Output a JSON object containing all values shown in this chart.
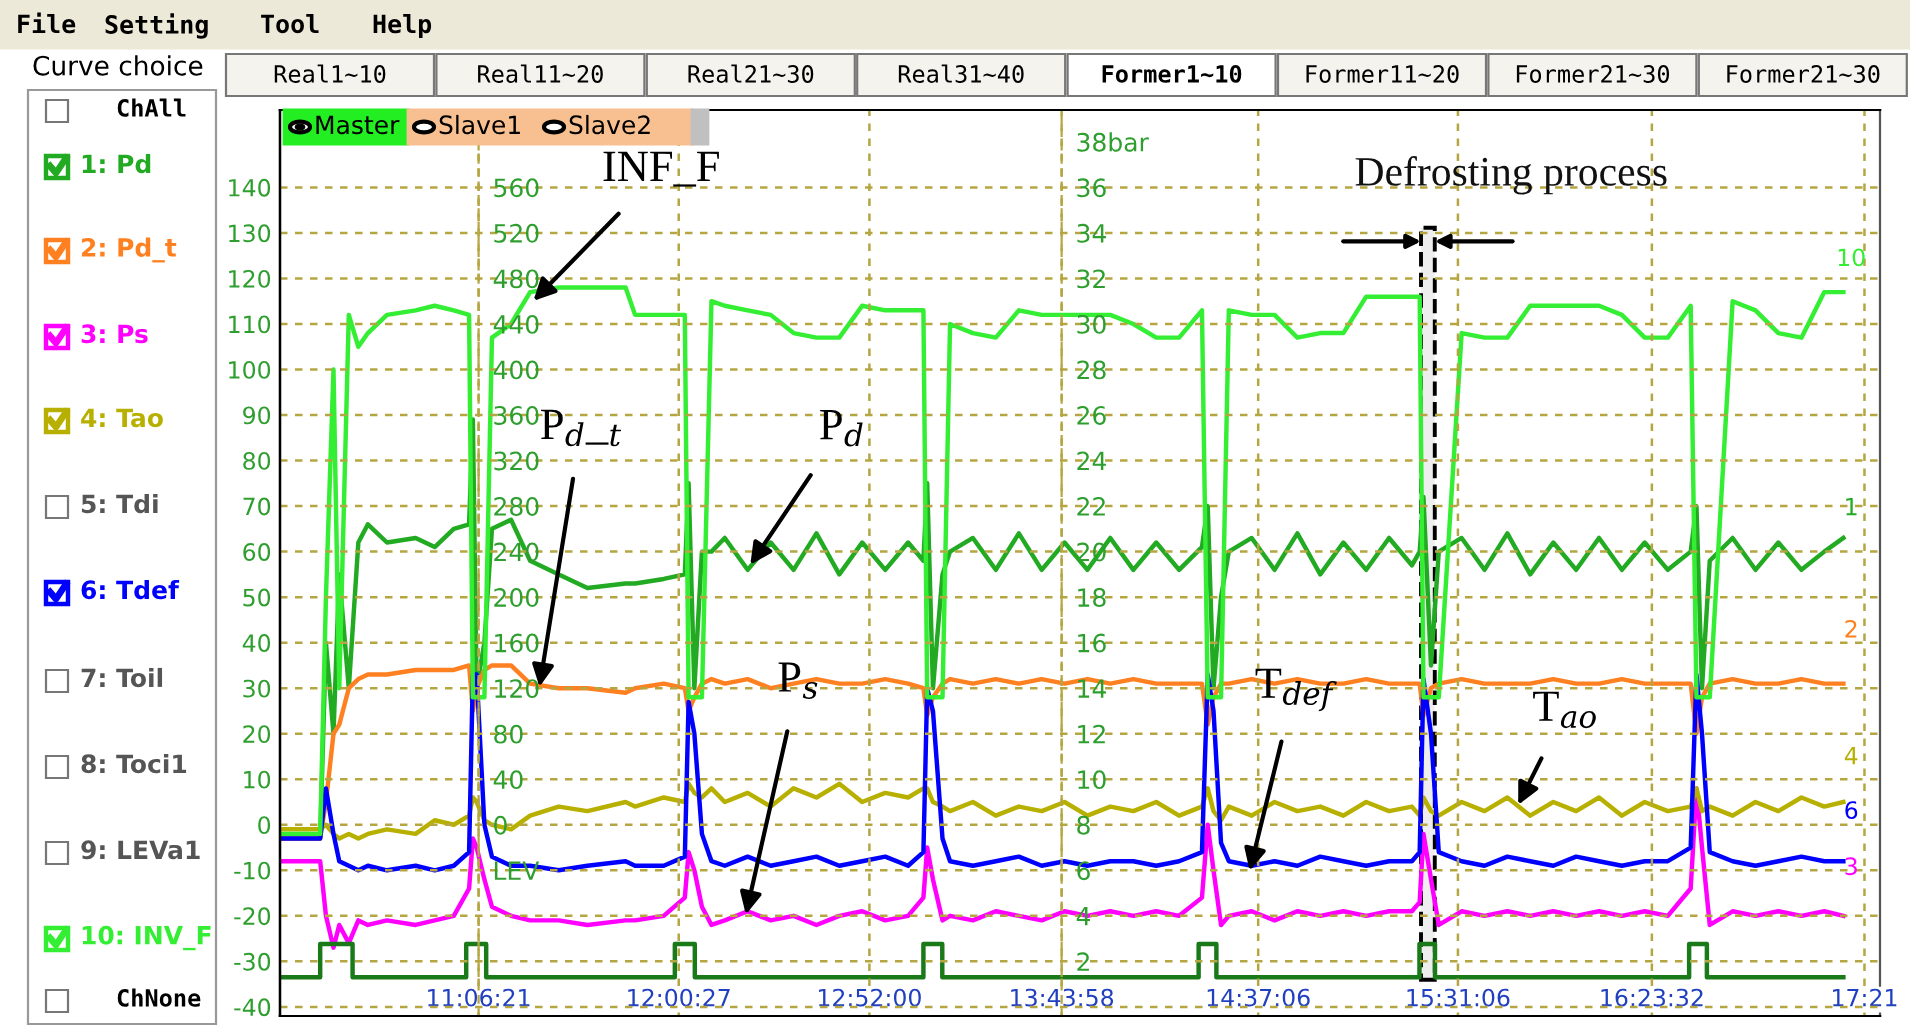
{
  "chart_data": {
    "type": "line",
    "x": [
      10.211,
      10.392,
      10.418,
      10.452,
      10.478,
      10.521,
      10.564,
      10.607,
      10.693,
      10.822,
      10.908,
      10.994,
      11.063,
      11.08,
      11.097,
      11.132,
      11.166,
      11.252,
      11.338,
      11.467,
      11.596,
      11.768,
      11.811,
      11.94,
      12.035,
      12.052,
      12.078,
      12.112,
      12.155,
      12.215,
      12.318,
      12.422,
      12.525,
      12.628,
      12.731,
      12.834,
      12.938,
      13.041,
      13.11,
      13.127,
      13.153,
      13.196,
      13.23,
      13.333,
      13.436,
      13.54,
      13.643,
      13.746,
      13.849,
      13.952,
      14.056,
      14.159,
      14.262,
      14.365,
      14.391,
      14.417,
      14.451,
      14.486,
      14.589,
      14.692,
      14.795,
      14.898,
      15.002,
      15.105,
      15.208,
      15.311,
      15.346,
      15.363,
      15.397,
      15.432,
      15.535,
      15.638,
      15.741,
      15.844,
      15.948,
      16.051,
      16.154,
      16.257,
      16.36,
      16.464,
      16.567,
      16.593,
      16.618,
      16.653,
      16.756,
      16.859,
      16.962,
      17.066,
      17.169,
      17.255
    ],
    "series": [
      {
        "name": "1: Pd",
        "color": "#22aa22",
        "values": [
          -3,
          -3,
          40,
          20,
          55,
          30,
          62,
          66,
          62,
          63,
          61,
          65,
          66,
          89,
          30,
          40,
          65,
          67,
          58,
          55,
          52,
          53,
          53,
          54,
          55,
          75,
          30,
          60,
          60,
          63,
          56,
          62,
          56,
          64,
          55,
          62,
          56,
          62,
          58,
          75,
          30,
          55,
          60,
          63,
          56,
          64,
          56,
          62,
          56,
          63,
          56,
          62,
          56,
          61,
          70,
          30,
          50,
          60,
          63,
          56,
          64,
          55,
          62,
          56,
          63,
          57,
          60,
          72,
          35,
          60,
          63,
          56,
          64,
          55,
          62,
          56,
          63,
          56,
          62,
          56,
          60,
          70,
          30,
          58,
          63,
          56,
          62,
          56,
          60,
          63
        ]
      },
      {
        "name": "2: Pd_t",
        "color": "#ff8020",
        "values": [
          -3,
          -3,
          5,
          20,
          22,
          30,
          32,
          33,
          33,
          34,
          34,
          34,
          35,
          25,
          30,
          34,
          35,
          35,
          31,
          30,
          30,
          29,
          30,
          31,
          30,
          25,
          28,
          31,
          32,
          31,
          32,
          30,
          31,
          32,
          31,
          31,
          32,
          31,
          30,
          24,
          28,
          31,
          32,
          31,
          32,
          31,
          32,
          31,
          32,
          31,
          32,
          31,
          31,
          31,
          22,
          28,
          31,
          31,
          32,
          31,
          32,
          31,
          31,
          32,
          31,
          31,
          31,
          24,
          30,
          31,
          32,
          31,
          31,
          31,
          32,
          31,
          31,
          32,
          31,
          31,
          31,
          20,
          28,
          31,
          32,
          31,
          31,
          32,
          31,
          31
        ]
      },
      {
        "name": "3: Ps",
        "color": "#ff00ff",
        "values": [
          -8,
          -8,
          -20,
          -27,
          -22,
          -26,
          -21,
          -22,
          -21,
          -22,
          -21,
          -20,
          -14,
          -3,
          -5,
          -12,
          -18,
          -20,
          -21,
          -21,
          -22,
          -21,
          -21,
          -20,
          -16,
          -6,
          -10,
          -18,
          -22,
          -21,
          -19,
          -21,
          -20,
          -22,
          -20,
          -19,
          -21,
          -20,
          -16,
          -5,
          -12,
          -21,
          -20,
          -21,
          -19,
          -20,
          -21,
          -19,
          -20,
          -19,
          -20,
          -19,
          -20,
          -16,
          0,
          -10,
          -22,
          -20,
          -19,
          -21,
          -19,
          -20,
          -19,
          -20,
          -19,
          -19,
          -17,
          -2,
          -12,
          -22,
          -19,
          -20,
          -19,
          -20,
          -19,
          -20,
          -19,
          -20,
          -19,
          -20,
          -14,
          8,
          -5,
          -22,
          -19,
          -20,
          -19,
          -20,
          -19,
          -20
        ]
      },
      {
        "name": "4: Tao",
        "color": "#b8b000",
        "values": [
          -1,
          -1,
          0,
          -2,
          -3,
          -2,
          -3,
          -2,
          -1,
          -2,
          1,
          0,
          2,
          6,
          5,
          1,
          0,
          -1,
          2,
          4,
          3,
          5,
          4,
          6,
          5,
          9,
          7,
          6,
          8,
          5,
          7,
          4,
          8,
          6,
          9,
          5,
          7,
          6,
          8,
          8,
          5,
          4,
          3,
          5,
          2,
          4,
          3,
          5,
          2,
          4,
          3,
          5,
          2,
          4,
          8,
          3,
          1,
          4,
          2,
          5,
          3,
          4,
          2,
          5,
          3,
          4,
          2,
          6,
          3,
          2,
          5,
          3,
          6,
          2,
          5,
          3,
          6,
          2,
          5,
          3,
          4,
          8,
          3,
          4,
          2,
          5,
          3,
          6,
          4,
          5
        ]
      },
      {
        "name": "6: Tdef",
        "color": "#0000ff",
        "values": [
          -3,
          -3,
          8,
          -2,
          -8,
          -9,
          -10,
          -9,
          -10,
          -9,
          -10,
          -9,
          -6,
          33,
          33,
          0,
          -7,
          -9,
          -9,
          -10,
          -9,
          -8,
          -9,
          -9,
          -7,
          27,
          20,
          -2,
          -8,
          -9,
          -7,
          -9,
          -8,
          -7,
          -9,
          -8,
          -7,
          -9,
          -6,
          30,
          25,
          -3,
          -8,
          -9,
          -8,
          -7,
          -9,
          -8,
          -9,
          -8,
          -8,
          -9,
          -8,
          -6,
          33,
          25,
          -4,
          -8,
          -9,
          -8,
          -9,
          -7,
          -8,
          -9,
          -8,
          -8,
          -6,
          32,
          20,
          -6,
          -8,
          -9,
          -7,
          -8,
          -9,
          -7,
          -8,
          -9,
          -8,
          -8,
          -5,
          33,
          20,
          -6,
          -8,
          -9,
          -8,
          -7,
          -8,
          -8
        ]
      },
      {
        "name": "10: INV_F",
        "color": "#33ee33",
        "values": [
          -2,
          -2,
          50,
          100,
          30,
          112,
          105,
          108,
          112,
          113,
          114,
          113,
          112,
          28,
          28,
          28,
          107,
          110,
          117,
          118,
          118,
          118,
          112,
          112,
          112,
          28,
          28,
          28,
          115,
          114,
          113,
          112,
          108,
          107,
          107,
          114,
          113,
          113,
          113,
          28,
          28,
          28,
          110,
          108,
          107,
          113,
          112,
          112,
          112,
          112,
          110,
          107,
          107,
          113,
          28,
          28,
          28,
          113,
          112,
          112,
          107,
          108,
          108,
          116,
          116,
          116,
          116,
          28,
          28,
          28,
          108,
          107,
          107,
          114,
          114,
          114,
          114,
          112,
          107,
          107,
          114,
          28,
          28,
          28,
          115,
          113,
          108,
          107,
          117,
          117
        ]
      },
      {
        "type": "step",
        "color": "#1a7a1a",
        "x": [
          10.211,
          10.392,
          10.538,
          11.05,
          11.14,
          11.99,
          12.08,
          13.11,
          13.195,
          14.35,
          14.43,
          15.345,
          15.415,
          16.56,
          16.64,
          17.255
        ],
        "values": [
          -33.5,
          -26.2,
          -33.5,
          -26.2,
          -33.5,
          -26.2,
          -33.5,
          -26.2,
          -33.5,
          -26.2,
          -33.5,
          -26.2,
          -33.5,
          -26.2,
          -33.5,
          -33.5
        ]
      }
    ],
    "xlim": [
      10.211,
      17.42
    ],
    "xticks": [
      {
        "value": 11.1058,
        "label": "11:06:21"
      },
      {
        "value": 12.0075,
        "label": "12:00:27"
      },
      {
        "value": 12.8667,
        "label": "12:52:00"
      },
      {
        "value": 13.7328,
        "label": "13:43:58"
      },
      {
        "value": 14.6183,
        "label": "14:37:06"
      },
      {
        "value": 15.5183,
        "label": "15:31:06"
      },
      {
        "value": 16.3922,
        "label": "16:23:32"
      },
      {
        "value": 17.35,
        "label": "17:21"
      }
    ],
    "ylim": [
      -42,
      157
    ],
    "yticks": [
      -40,
      -30,
      -20,
      -10,
      0,
      10,
      20,
      30,
      40,
      50,
      60,
      70,
      80,
      90,
      100,
      110,
      120,
      130,
      140
    ],
    "y2lim": [
      -168,
      628
    ],
    "y2ticks": [
      {
        "value": -40,
        "label": "LEV"
      },
      0,
      40,
      80,
      120,
      160,
      200,
      240,
      280,
      320,
      360,
      400,
      440,
      480,
      520,
      560
    ],
    "y3lim": [
      -0.4,
      39.4
    ],
    "y3ticks": [
      2,
      4,
      6,
      8,
      10,
      12,
      14,
      16,
      18,
      20,
      22,
      24,
      26,
      28,
      30,
      32,
      34,
      36,
      {
        "value": 38,
        "label": "38bar"
      }
    ],
    "grid": true,
    "legend": "left",
    "bands": [
      {
        "axis": "x",
        "from": 15.352,
        "to": 15.414,
        "label": "Defrosting process",
        "color": "#000000"
      }
    ],
    "annotations": [
      "File",
      "Setting",
      "Tool",
      "Help",
      "Real1~10",
      "Real11~20",
      "Real21~30",
      "Real31~40",
      "Former1~10",
      "Former11~20",
      "Former21~30",
      "Former21~30",
      "Curve choice",
      "ChAll",
      "5: Tdi",
      "7: Toil",
      "8: Toci1",
      "9: LEVa1",
      "ChNone",
      "Master",
      "Slave1",
      "Slave2",
      {
        "text": "INF_F",
        "x": 11.353,
        "y": 115.1
      },
      {
        "text": "P$_{d}$_$_{t}$",
        "x": 11.38,
        "y": 30.3
      },
      {
        "text": "P$_{d}$",
        "x": 12.33,
        "y": 57.1
      },
      {
        "text": "P$_{s}$",
        "x": 12.31,
        "y": -19.7
      },
      {
        "text": "T$_{def}$",
        "x": 14.58,
        "y": -10.1
      },
      {
        "text": "T$_{ao}$",
        "x": 15.79,
        "y": 4.4
      },
      "10",
      "1",
      "2",
      "4",
      "6",
      "3"
    ]
  }
}
